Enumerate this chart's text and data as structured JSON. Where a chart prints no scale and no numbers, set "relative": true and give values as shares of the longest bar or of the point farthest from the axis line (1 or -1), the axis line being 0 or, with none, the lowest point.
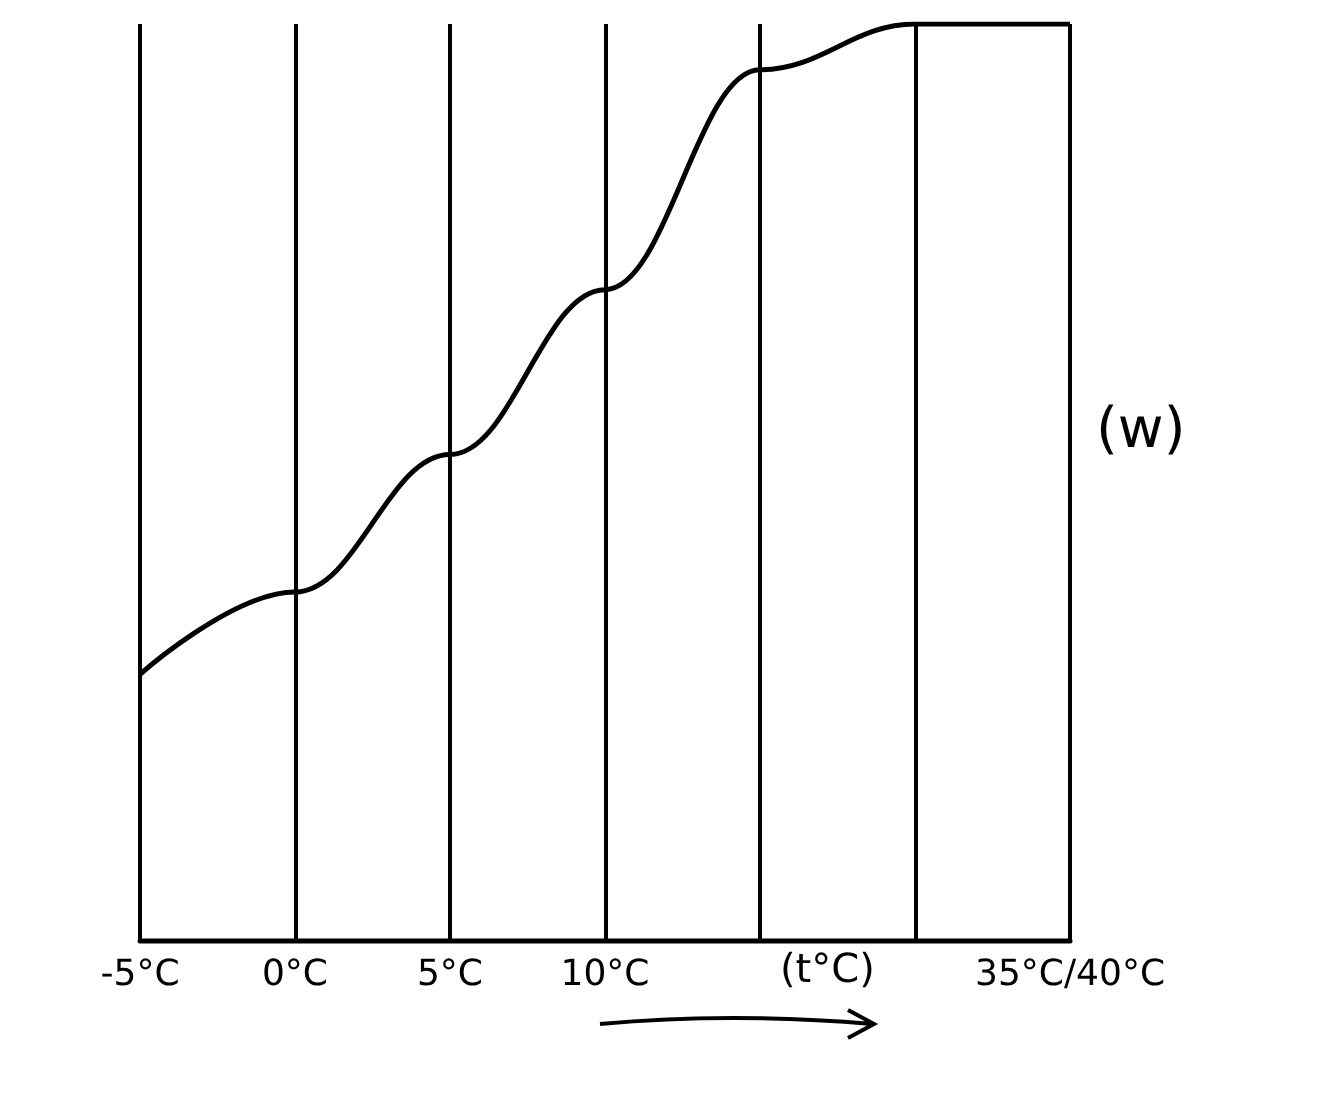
{
  "chart_data": {
    "type": "line",
    "relative": true,
    "xlabel": "(t°C)",
    "ylabel": "(w)",
    "categories": [
      "-5°C",
      "0°C",
      "5°C",
      "10°C",
      null,
      null,
      "35°C/40°C"
    ],
    "series": [
      {
        "color": "#000000",
        "values": [
          0.29,
          0.38,
          0.53,
          0.71,
          0.95,
          1,
          1
        ]
      }
    ],
    "marker": "none",
    "grid": "x"
  }
}
